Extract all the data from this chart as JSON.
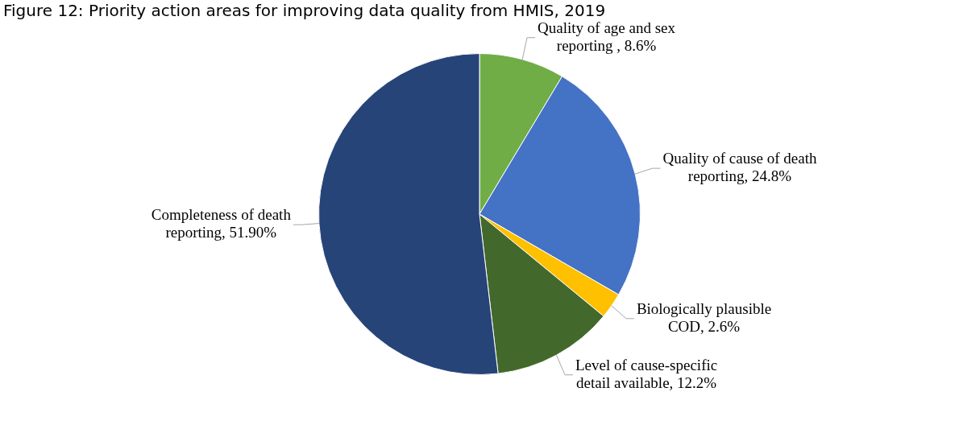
{
  "chart_data": {
    "type": "pie",
    "title": "Figure 12: Priority action areas for improving data quality from HMIS, 2019",
    "categories": [
      "Quality of age and sex reporting ",
      "Quality of cause of death reporting",
      "Biologically plausible COD",
      "Level of cause-specific detail available",
      "Completeness of death reporting"
    ],
    "values": [
      8.6,
      24.8,
      2.6,
      12.2,
      51.9
    ],
    "value_labels": [
      "8.6%",
      "24.8%",
      "2.6%",
      "12.2%",
      "51.90%"
    ],
    "colors": [
      "#70ad47",
      "#4472c4",
      "#ffc000",
      "#43682b",
      "#264478"
    ],
    "legend": false
  }
}
